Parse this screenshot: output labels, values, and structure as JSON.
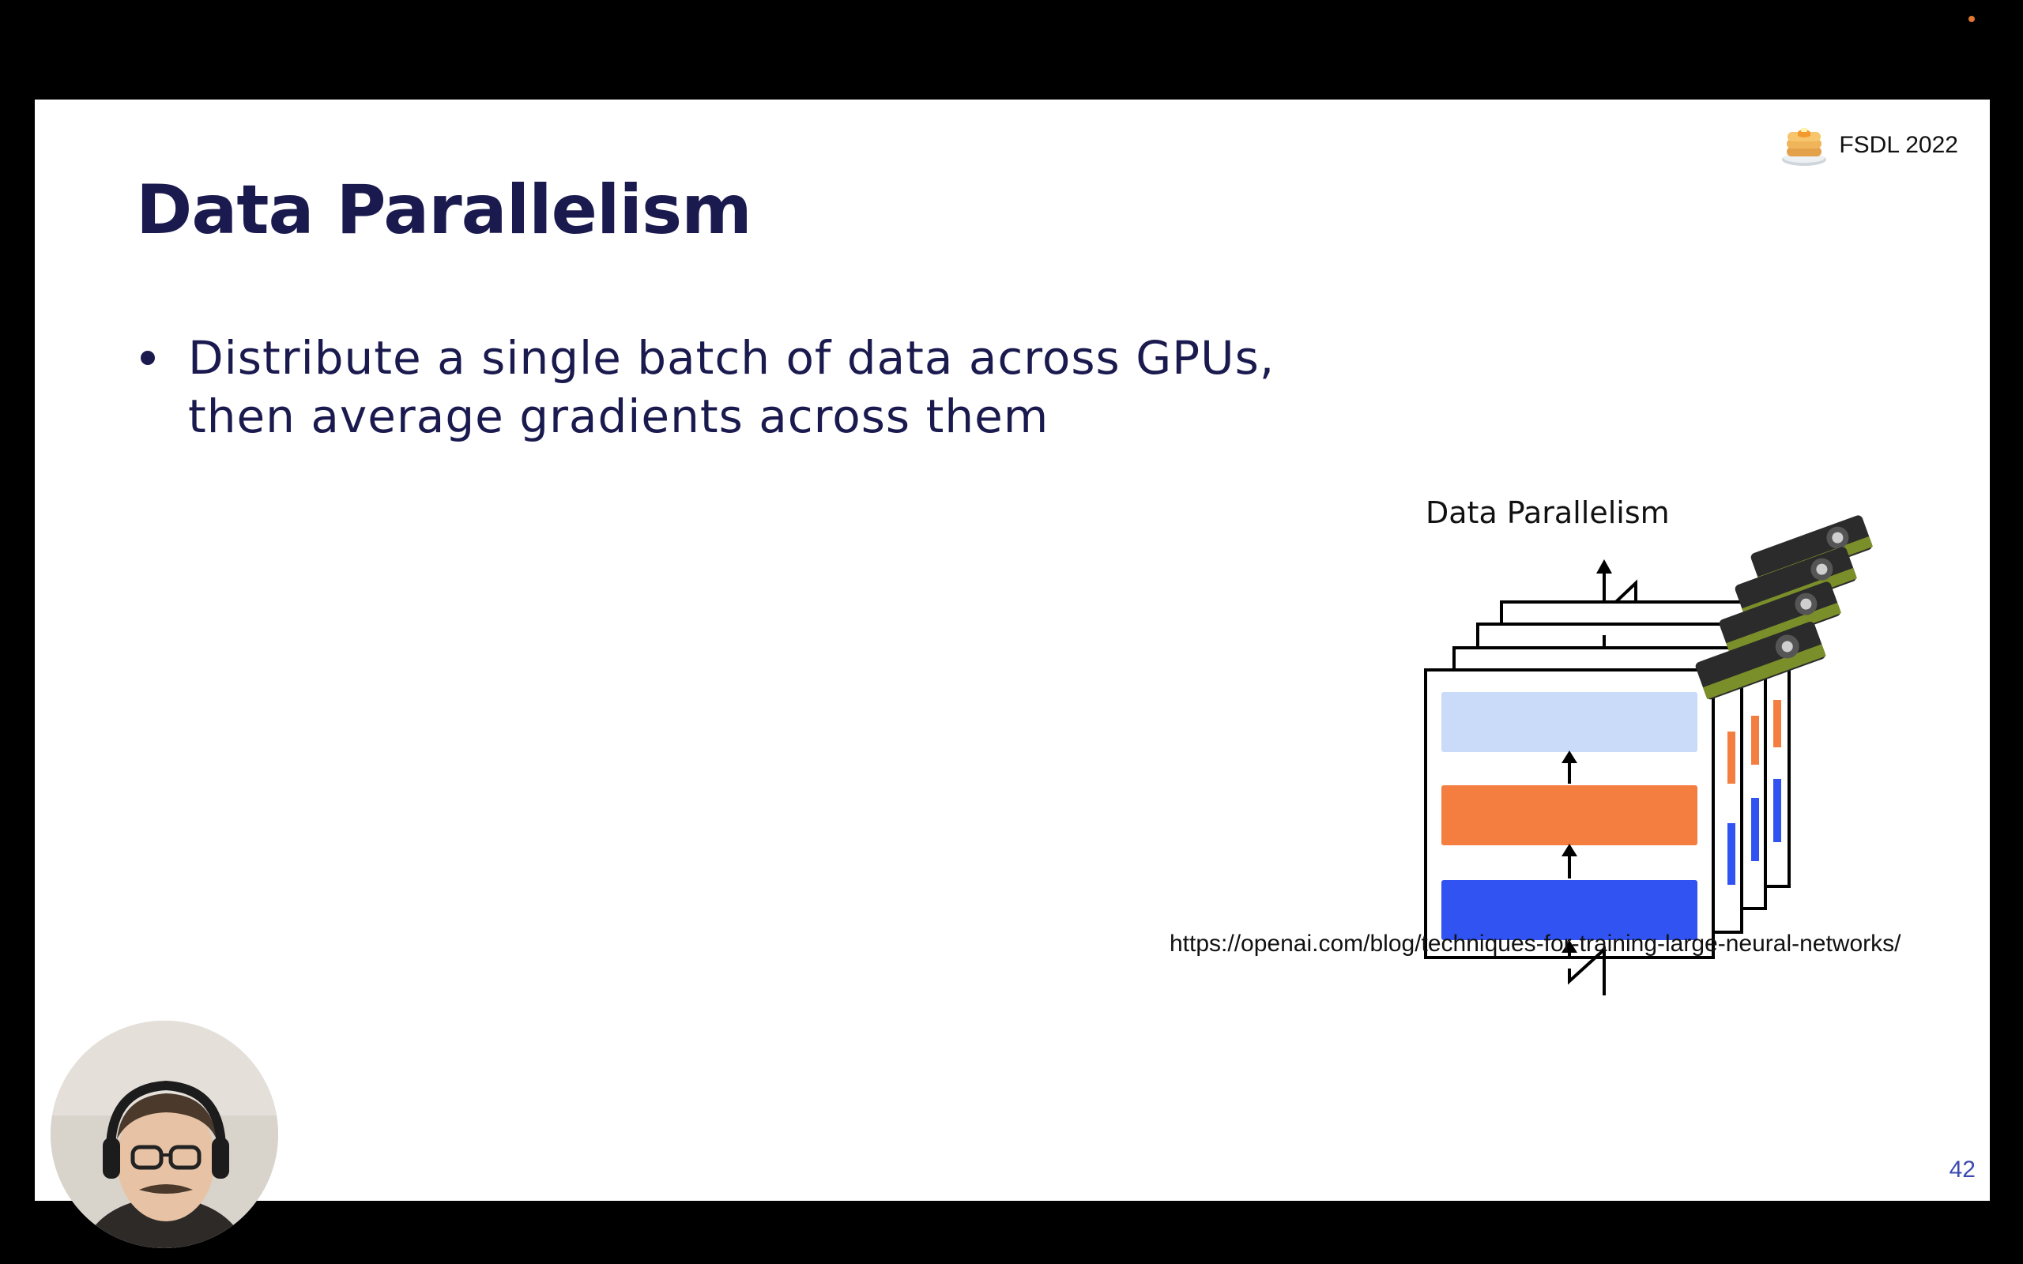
{
  "slide": {
    "title": "Data Parallelism",
    "bullets": [
      "Distribute a single batch of data across GPUs, then average gradients across them"
    ],
    "brand": {
      "text": "FSDL 2022",
      "logo_icon": "pancake-stack-icon"
    },
    "figure": {
      "caption": "Data Parallelism",
      "layer_colors": {
        "top_layer": "#c9dbf9",
        "middle_layer": "#f47e3f",
        "bottom_layer": "#3053f2"
      },
      "gpu_icon": "gpu-card-icon",
      "gpu_count": 4
    },
    "source_url": "https://openai.com/blog/techniques-for-training-large-neural-networks/",
    "page_number": "42"
  },
  "presenter": {
    "webcam_icon": "presenter-webcam-icon"
  },
  "colors": {
    "title": "#1b1a4f",
    "page_number": "#3b4ab0",
    "background": "#000000",
    "slide_background": "#ffffff",
    "recording_dot": "#e0782f"
  }
}
